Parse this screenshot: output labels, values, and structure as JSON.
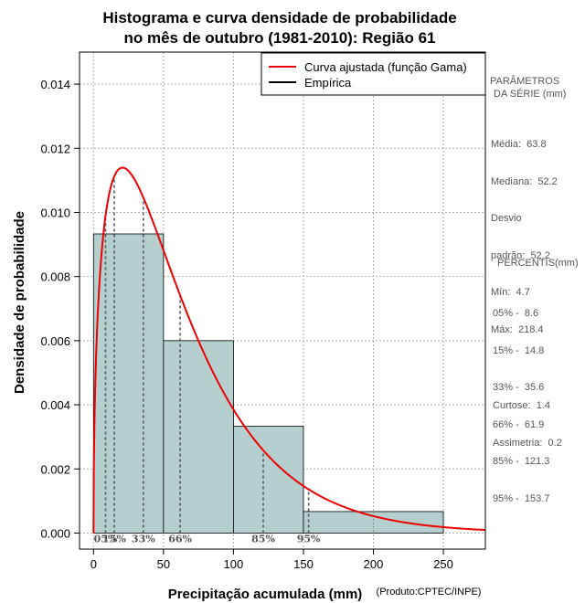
{
  "chart_data": {
    "type": "bar",
    "title_lines": [
      "Histograma e curva densidade de probabilidade",
      "no mês de outubro (1981-2010): Região 61"
    ],
    "xlabel": "Precipitação acumulada (mm)",
    "ylabel": "Densidade de probabilidade",
    "credit": "(Produto:CPTEC/INPE)",
    "xlim": [
      -10,
      280
    ],
    "ylim": [
      -0.0005,
      0.015
    ],
    "xticks": [
      0,
      50,
      100,
      150,
      200,
      250
    ],
    "yticks": [
      0.0,
      0.002,
      0.004,
      0.006,
      0.008,
      0.01,
      0.012,
      0.014
    ],
    "ytick_labels": [
      "0.000",
      "0.002",
      "0.004",
      "0.006",
      "0.008",
      "0.010",
      "0.012",
      "0.014"
    ],
    "grid": true,
    "histogram": {
      "name": "Empírica",
      "color": "#b5cfcf",
      "bins": [
        {
          "start": 0,
          "end": 50,
          "density": 0.00933
        },
        {
          "start": 50,
          "end": 100,
          "density": 0.006
        },
        {
          "start": 100,
          "end": 150,
          "density": 0.00333
        },
        {
          "start": 150,
          "end": 250,
          "density": 0.00067
        }
      ]
    },
    "curve": {
      "name": "Curva ajustada (função Gama)",
      "color": "#ee0000",
      "distribution": "gamma",
      "shape": 1.48,
      "scale": 43.1,
      "x_range": [
        0.2,
        280
      ]
    },
    "percentile_markers": [
      {
        "label": "05%",
        "value": 8.6
      },
      {
        "label": "15%",
        "value": 14.8
      },
      {
        "label": "33%",
        "value": 35.6
      },
      {
        "label": "66%",
        "value": 61.9
      },
      {
        "label": "85%",
        "value": 121.3
      },
      {
        "label": "95%",
        "value": 153.7
      }
    ],
    "legend": {
      "position": "top-right",
      "entries": [
        {
          "label": "Curva ajustada (função Gama)",
          "color": "#ee0000"
        },
        {
          "label": "Empírica",
          "color": "#000000"
        }
      ]
    }
  },
  "side_panel": {
    "params_title_1": "PARÂMETROS",
    "params_title_2": "DA SÉRIE (mm)",
    "stats": [
      {
        "label": "Média:",
        "value": "63.8"
      },
      {
        "label": "Mediana:",
        "value": "52.2"
      },
      {
        "label": "Desvio",
        "value": ""
      },
      {
        "label": "padrão:",
        "value": "52.2"
      },
      {
        "label": "Mín:",
        "value": "4.7"
      },
      {
        "label": "Máx:",
        "value": "218.4"
      }
    ],
    "percentis_title": "PERCENTIS(mm)",
    "percentis": [
      {
        "label": "05% -",
        "value": "8.6"
      },
      {
        "label": "15% -",
        "value": "14.8"
      },
      {
        "label": "33% -",
        "value": "35.6"
      },
      {
        "label": "66% -",
        "value": "61.9"
      },
      {
        "label": "85% -",
        "value": "121.3"
      },
      {
        "label": "95% -",
        "value": "153.7"
      }
    ],
    "shape_stats": [
      {
        "label": "Curtose:",
        "value": "1.4"
      },
      {
        "label": "Assimetria:",
        "value": "0.2"
      }
    ]
  }
}
